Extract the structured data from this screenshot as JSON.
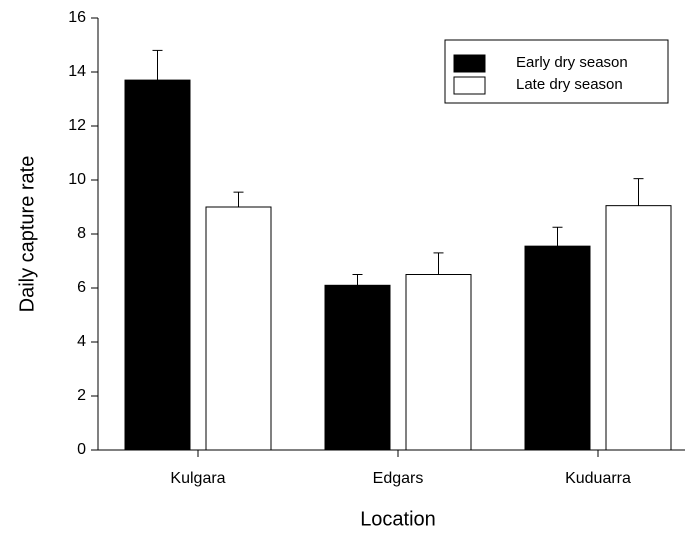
{
  "chart_data": {
    "type": "bar",
    "x_label": "Location",
    "y_label": "Daily capture rate",
    "categories": [
      "Kulgara",
      "Edgars",
      "Kuduarra"
    ],
    "series": [
      {
        "name": "Early dry season",
        "color": "#000000",
        "values": [
          13.7,
          6.1,
          7.55
        ],
        "errors": [
          1.1,
          0.4,
          0.7
        ]
      },
      {
        "name": "Late dry season",
        "color": "#ffffff",
        "values": [
          9.0,
          6.5,
          9.05
        ],
        "errors": [
          0.55,
          0.8,
          1.0
        ]
      }
    ],
    "ylim": [
      0,
      16
    ],
    "yticks": [
      0,
      2,
      4,
      6,
      8,
      10,
      12,
      14,
      16
    ],
    "grid": false,
    "legend": "upper right"
  }
}
